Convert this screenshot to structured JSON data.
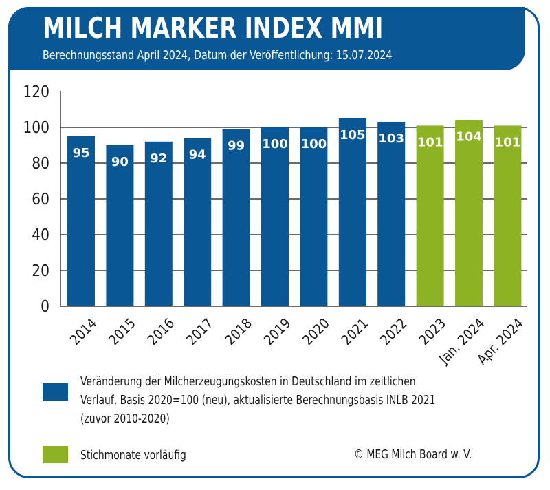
{
  "header": {
    "title": "MILCH MARKER INDEX MMI",
    "subtitle": "Berechnungsstand April 2024, Datum der Veröffentlichung: 15.07.2024"
  },
  "colors": {
    "brand_blue": "#0a5796",
    "preliminary_green": "#8db223"
  },
  "chart_data": {
    "type": "bar",
    "title": "MILCH MARKER INDEX MMI",
    "subtitle": "Berechnungsstand April 2024, Datum der Veröffentlichung: 15.07.2024",
    "xlabel": "",
    "ylabel": "",
    "ylim": [
      0,
      120
    ],
    "yticks": [
      0,
      20,
      40,
      60,
      80,
      100,
      120
    ],
    "grid": true,
    "categories": [
      "2014",
      "2015",
      "2016",
      "2017",
      "2018",
      "2019",
      "2020",
      "2021",
      "2022",
      "2023",
      "Jan. 2024",
      "Apr. 2024"
    ],
    "values": [
      95,
      90,
      92,
      94,
      99,
      100,
      100,
      105,
      103,
      101,
      104,
      101
    ],
    "series_membership": [
      "final",
      "final",
      "final",
      "final",
      "final",
      "final",
      "final",
      "final",
      "final",
      "preliminary",
      "preliminary",
      "preliminary"
    ],
    "data_labels": [
      "95",
      "90",
      "92",
      "94",
      "99",
      "100",
      "100",
      "105",
      "103",
      "101",
      "104",
      "101"
    ],
    "legend": [
      {
        "key": "final",
        "color": "#0a5796",
        "label": "Veränderung der Milcherzeugungskosten in Deutschland im zeitlichen Verlauf, Basis 2020=100 (neu), aktualisierte Berechnungsbasis INLB 2021 (zuvor 2010-2020)"
      },
      {
        "key": "preliminary",
        "color": "#8db223",
        "label": "Stichmonate vorläufig"
      }
    ],
    "legend_placement": "bottom"
  },
  "legend": {
    "blue_lines": [
      "Veränderung der Milcherzeugungskosten in Deutschland im zeitlichen",
      "Verlauf, Basis 2020=100 (neu), aktualisierte Berechnungsbasis INLB 2021",
      "(zuvor 2010-2020)"
    ],
    "green_label": "Stichmonate vorläufig"
  },
  "footer": {
    "copyright": "© MEG Milch Board w. V."
  }
}
